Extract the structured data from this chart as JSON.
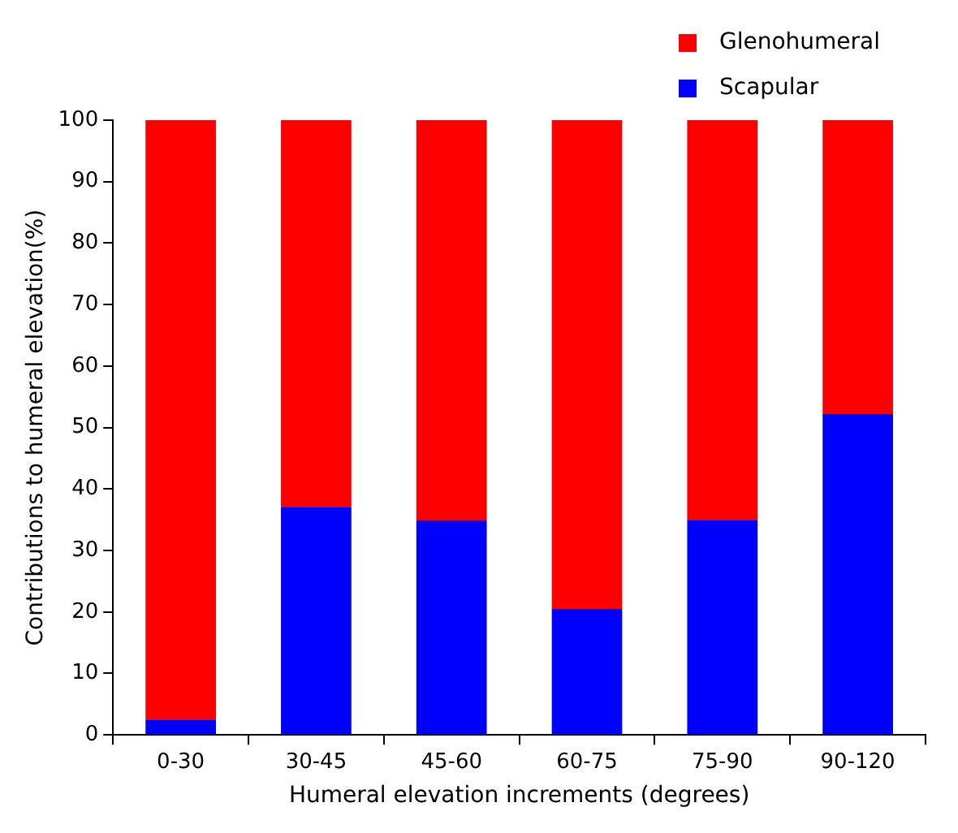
{
  "chart_data": {
    "type": "bar",
    "stacked": true,
    "xlabel": "Humeral elevation increments (degrees)",
    "ylabel": "Contributions to humeral elevation(%)",
    "categories": [
      "0-30",
      "30-45",
      "45-60",
      "60-75",
      "75-90",
      "90-120"
    ],
    "series": [
      {
        "name": "Scapular",
        "color": "#0000ff",
        "values": [
          2.5,
          37.1,
          34.9,
          20.5,
          35.0,
          52.2
        ]
      },
      {
        "name": "Glenohumeral",
        "color": "#ff0000",
        "values": [
          97.5,
          62.9,
          65.1,
          79.5,
          65.0,
          47.8
        ]
      }
    ],
    "ylim": [
      0,
      100
    ],
    "yticks": [
      0,
      10,
      20,
      30,
      40,
      50,
      60,
      70,
      80,
      90,
      100
    ],
    "grid": false,
    "legend": "top right"
  }
}
